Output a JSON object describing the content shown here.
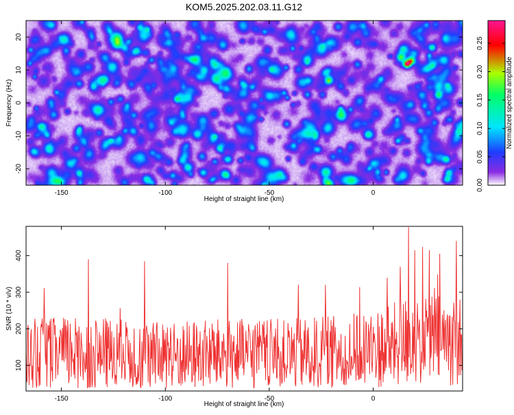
{
  "title": "KOM5.2025.202.03.11.G12",
  "chart_data": [
    {
      "type": "heatmap",
      "xlabel": "Height of straight line (km)",
      "ylabel": "Frequency (Hz)",
      "xlim": [
        -167,
        43
      ],
      "ylim": [
        -25,
        25
      ],
      "xticks": [
        -150,
        -100,
        -50,
        0
      ],
      "xtick_labels": [
        "-150",
        "-100",
        "-50",
        "0"
      ],
      "yticks": [
        -20,
        -10,
        0,
        10,
        20
      ],
      "ytick_labels": [
        "-20",
        "-10",
        "0",
        "10",
        "20"
      ],
      "colorbar": {
        "label": "Normalized spectral amplitude",
        "range": [
          0,
          0.29
        ],
        "ticks": [
          0,
          0.05,
          0.1,
          0.15,
          0.2,
          0.25
        ],
        "tick_labels": [
          "0.00",
          "0.05",
          "0.10",
          "0.15",
          "0.20",
          "0.25"
        ],
        "colormap": [
          "#ffffff",
          "#8a2be2",
          "#1e3cff",
          "#00e5ff",
          "#00ff66",
          "#aaff00",
          "#ff0000",
          "#ff1493"
        ]
      },
      "background_level": 0.02,
      "peaks": [
        {
          "x": 16,
          "y": 12,
          "value": 0.27
        },
        {
          "x": 18,
          "y": 13,
          "value": 0.18
        },
        {
          "x": 13,
          "y": 14,
          "value": 0.13
        },
        {
          "x": 28,
          "y": 17,
          "value": 0.13
        },
        {
          "x": 35,
          "y": -17,
          "value": 0.12
        },
        {
          "x": 36,
          "y": -21,
          "value": 0.11
        },
        {
          "x": 35,
          "y": -23,
          "value": 0.1
        },
        {
          "x": -70,
          "y": -17,
          "value": 0.09
        },
        {
          "x": -27,
          "y": -14,
          "value": 0.09
        },
        {
          "x": -135,
          "y": 5,
          "value": 0.08
        },
        {
          "x": -148,
          "y": 16,
          "value": 0.08
        },
        {
          "x": -160,
          "y": -7,
          "value": 0.07
        },
        {
          "x": -82,
          "y": -21,
          "value": 0.07
        },
        {
          "x": -8,
          "y": 12,
          "value": 0.07
        }
      ]
    },
    {
      "type": "line",
      "xlabel": "Height of straight line (km)",
      "ylabel": "SNR (10 * v/v)",
      "xlim": [
        -167,
        43
      ],
      "ylim": [
        30,
        480
      ],
      "xticks": [
        -150,
        -100,
        -50,
        0
      ],
      "xtick_labels": [
        "-150",
        "-100",
        "-50",
        "0"
      ],
      "yticks": [
        100,
        200,
        300,
        400
      ],
      "ytick_labels": [
        "100",
        "200",
        "300",
        "400"
      ],
      "color": "#ee3333",
      "series": [
        {
          "sample_spacing_km": 0.25,
          "mean_envelope": [
            [
              -167,
              130
            ],
            [
              -140,
              135
            ],
            [
              -120,
              130
            ],
            [
              -100,
              125
            ],
            [
              -80,
              130
            ],
            [
              -60,
              130
            ],
            [
              -40,
              130
            ],
            [
              -20,
              135
            ],
            [
              0,
              145
            ],
            [
              10,
              155
            ],
            [
              20,
              175
            ],
            [
              30,
              170
            ],
            [
              43,
              165
            ]
          ],
          "spikes": [
            {
              "x": -137,
              "y": 390
            },
            {
              "x": -110,
              "y": 385
            },
            {
              "x": -70,
              "y": 380
            },
            {
              "x": -36,
              "y": 320
            },
            {
              "x": -23,
              "y": 320
            },
            {
              "x": 13,
              "y": 370
            },
            {
              "x": 17,
              "y": 478
            },
            {
              "x": 20,
              "y": 415
            },
            {
              "x": 27,
              "y": 415
            },
            {
              "x": 32,
              "y": 405
            },
            {
              "x": 40,
              "y": 440
            }
          ]
        }
      ]
    }
  ]
}
